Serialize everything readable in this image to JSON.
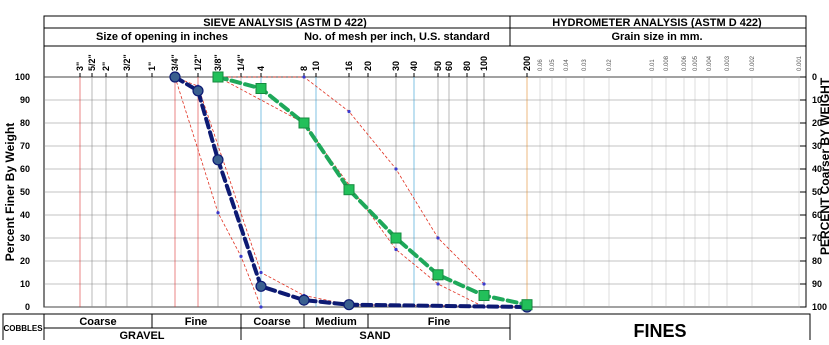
{
  "chart_data": {
    "type": "line",
    "header": {
      "sieve_title": "SIEVE ANALYSIS (ASTM D 422)",
      "sieve_left_sub": "Size of opening in inches",
      "sieve_right_sub": "No. of mesh per inch, U.S. standard",
      "hydro_title": "HYDROMETER ANALYSIS (ASTM D 422)",
      "hydro_sub": "Grain size in mm."
    },
    "ylabel_left": "Percent Finer By Weight",
    "ylabel_right": "PERCENT Coarser BY WEIGHT",
    "y_left_ticks": [
      "100",
      "90",
      "80",
      "70",
      "60",
      "50",
      "40",
      "30",
      "20",
      "10",
      "0"
    ],
    "y_right_ticks": [
      "0",
      "10",
      "20",
      "30",
      "40",
      "50",
      "60",
      "70",
      "80",
      "90",
      "100"
    ],
    "ylim": [
      0,
      100
    ],
    "x_ticks": [
      {
        "label": "3\"",
        "mm": 75
      },
      {
        "label": "5/2\"",
        "mm": 63
      },
      {
        "label": "2\"",
        "mm": 50
      },
      {
        "label": "3/2\"",
        "mm": 37.5
      },
      {
        "label": "1\"",
        "mm": 25
      },
      {
        "label": "3/4\"",
        "mm": 19
      },
      {
        "label": "1/2\"",
        "mm": 12.5
      },
      {
        "label": "3/8\"",
        "mm": 9.5
      },
      {
        "label": "1/4\"",
        "mm": 6.3
      },
      {
        "label": "4",
        "mm": 4.75
      },
      {
        "label": "8",
        "mm": 2.36
      },
      {
        "label": "10",
        "mm": 2.0
      },
      {
        "label": "16",
        "mm": 1.18
      },
      {
        "label": "20",
        "mm": 0.85
      },
      {
        "label": "30",
        "mm": 0.6
      },
      {
        "label": "40",
        "mm": 0.425
      },
      {
        "label": "50",
        "mm": 0.3
      },
      {
        "label": "60",
        "mm": 0.25
      },
      {
        "label": "80",
        "mm": 0.18
      },
      {
        "label": "100",
        "mm": 0.15
      },
      {
        "label": "200",
        "mm": 0.075
      }
    ],
    "hydro_ticks": [
      {
        "label": "0.06",
        "mm": 0.06
      },
      {
        "label": "0.05",
        "mm": 0.05
      },
      {
        "label": "0.04",
        "mm": 0.04
      },
      {
        "label": "0.03",
        "mm": 0.03
      },
      {
        "label": "0.02",
        "mm": 0.02
      },
      {
        "label": "0.01",
        "mm": 0.01
      },
      {
        "label": "0.008",
        "mm": 0.008
      },
      {
        "label": "0.006",
        "mm": 0.006
      },
      {
        "label": "0.005",
        "mm": 0.005
      },
      {
        "label": "0.004",
        "mm": 0.004
      },
      {
        "label": "0.003",
        "mm": 0.003
      },
      {
        "label": "0.002",
        "mm": 0.002
      },
      {
        "label": "0.001",
        "mm": 0.001
      }
    ],
    "series": [
      {
        "color": "#0d1a73",
        "marker": "circle",
        "points": [
          {
            "mm": 19,
            "y": 100
          },
          {
            "mm": 12.5,
            "y": 94
          },
          {
            "mm": 9.5,
            "y": 64
          },
          {
            "mm": 4.75,
            "y": 9
          },
          {
            "mm": 2.36,
            "y": 3
          },
          {
            "mm": 1.18,
            "y": 1
          },
          {
            "mm": 0.075,
            "y": 0
          }
        ]
      },
      {
        "color": "#1ea85a",
        "marker": "square",
        "points": [
          {
            "mm": 9.5,
            "y": 100
          },
          {
            "mm": 4.75,
            "y": 95
          },
          {
            "mm": 2.36,
            "y": 80
          },
          {
            "mm": 1.18,
            "y": 51
          },
          {
            "mm": 0.6,
            "y": 30
          },
          {
            "mm": 0.3,
            "y": 14
          },
          {
            "mm": 0.15,
            "y": 5
          },
          {
            "mm": 0.075,
            "y": 1
          }
        ]
      }
    ],
    "envelopes": [
      {
        "color": "#e03020",
        "points": [
          {
            "mm": 19,
            "y": 100
          },
          {
            "mm": 12.5,
            "y": 96
          },
          {
            "mm": 4.75,
            "y": 15
          },
          {
            "mm": 2.36,
            "y": 5
          },
          {
            "mm": 1.18,
            "y": 1
          },
          {
            "mm": 0.075,
            "y": 0
          }
        ]
      },
      {
        "color": "#e03020",
        "points": [
          {
            "mm": 19,
            "y": 100
          },
          {
            "mm": 9.5,
            "y": 41
          },
          {
            "mm": 6.3,
            "y": 22
          },
          {
            "mm": 4.75,
            "y": 0
          }
        ]
      },
      {
        "color": "#e03020",
        "points": [
          {
            "mm": 9.5,
            "y": 100
          },
          {
            "mm": 2.36,
            "y": 100
          },
          {
            "mm": 1.18,
            "y": 85
          },
          {
            "mm": 0.6,
            "y": 60
          },
          {
            "mm": 0.3,
            "y": 30
          },
          {
            "mm": 0.15,
            "y": 10
          }
        ]
      },
      {
        "color": "#e03020",
        "points": [
          {
            "mm": 9.5,
            "y": 100
          },
          {
            "mm": 2.36,
            "y": 80
          },
          {
            "mm": 0.6,
            "y": 25
          },
          {
            "mm": 0.3,
            "y": 10
          },
          {
            "mm": 0.15,
            "y": 0
          }
        ]
      }
    ],
    "soil_classes": {
      "cobbles": "COBBLES",
      "gravel": "GRAVEL",
      "gravel_coarse": "Coarse",
      "gravel_fine": "Fine",
      "sand": "SAND",
      "sand_coarse": "Coarse",
      "sand_medium": "Medium",
      "sand_fine": "Fine",
      "fines": "FINES"
    }
  }
}
